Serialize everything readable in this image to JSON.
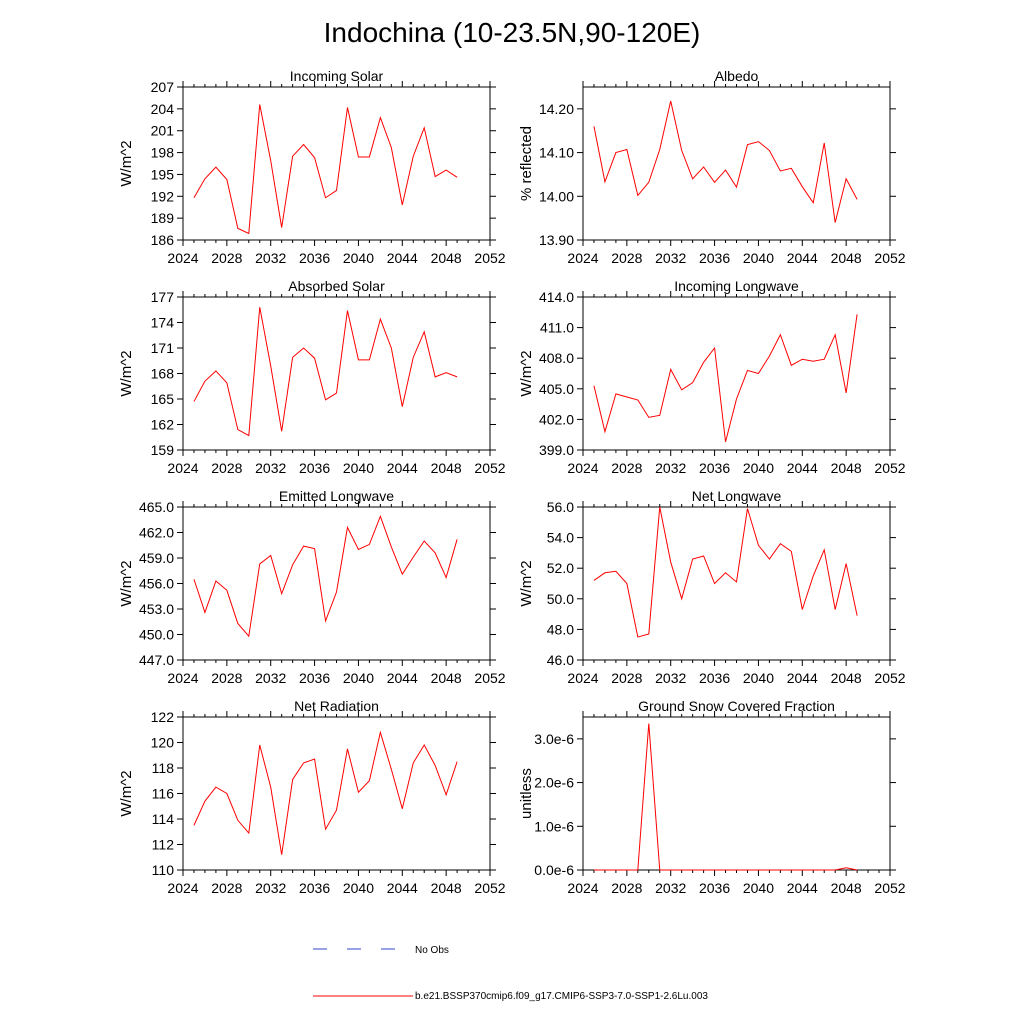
{
  "title": "Indochina (10-23.5N,90-120E)",
  "legend": {
    "entries": [
      {
        "label": "No Obs",
        "color": "#3344cc",
        "style": "dashed"
      },
      {
        "label": "b.e21.BSSP370cmip6.f09_g17.CMIP6-SSP3-7.0-SSP1-2.6Lu.003",
        "color": "#ff0000",
        "style": "solid"
      }
    ]
  },
  "colors": {
    "series": "#ff0000",
    "axis": "#000000"
  },
  "chart_data": [
    {
      "type": "line",
      "title": "Incoming Solar",
      "xlabel": "",
      "ylabel": "W/m^2",
      "xlim": [
        2024,
        2052
      ],
      "ylim": [
        186,
        207
      ],
      "xticks": [
        2024,
        2028,
        2032,
        2036,
        2040,
        2044,
        2048,
        2052
      ],
      "xtick_labels": [
        "2024",
        "2028",
        "2032",
        "2036",
        "2040",
        "2044",
        "2048",
        "2052"
      ],
      "yticks": [
        186,
        189,
        192,
        195,
        198,
        201,
        204,
        207
      ],
      "ytick_labels": [
        "186",
        "189",
        "192",
        "195",
        "198",
        "201",
        "204",
        "207"
      ],
      "x": [
        2025,
        2026,
        2027,
        2028,
        2029,
        2030,
        2031,
        2032,
        2033,
        2034,
        2035,
        2036,
        2037,
        2038,
        2039,
        2040,
        2041,
        2042,
        2043,
        2044,
        2045,
        2046,
        2047,
        2048,
        2049
      ],
      "series": [
        {
          "name": "b.e21.BSSP370cmip6.f09_g17.CMIP6-SSP3-7.0-SSP1-2.6Lu.003",
          "values": [
            191.8,
            194.4,
            196.0,
            194.3,
            187.6,
            186.9,
            204.6,
            196.9,
            187.7,
            197.5,
            199.1,
            197.3,
            191.8,
            192.8,
            204.2,
            197.4,
            197.4,
            202.8,
            198.7,
            190.8,
            197.5,
            201.4,
            194.7,
            195.6,
            194.6
          ]
        }
      ]
    },
    {
      "type": "line",
      "title": "Albedo",
      "xlabel": "",
      "ylabel": "% reflected",
      "xlim": [
        2024,
        2052
      ],
      "ylim": [
        13.9,
        14.25
      ],
      "xticks": [
        2024,
        2028,
        2032,
        2036,
        2040,
        2044,
        2048,
        2052
      ],
      "xtick_labels": [
        "2024",
        "2028",
        "2032",
        "2036",
        "2040",
        "2044",
        "2048",
        "2052"
      ],
      "yticks": [
        13.9,
        14.0,
        14.1,
        14.2
      ],
      "ytick_labels": [
        "13.90",
        "14.00",
        "14.10",
        "14.20"
      ],
      "x": [
        2025,
        2026,
        2027,
        2028,
        2029,
        2030,
        2031,
        2032,
        2033,
        2034,
        2035,
        2036,
        2037,
        2038,
        2039,
        2040,
        2041,
        2042,
        2043,
        2044,
        2045,
        2046,
        2047,
        2048,
        2049
      ],
      "series": [
        {
          "name": "b.e21.BSSP370cmip6.f09_g17.CMIP6-SSP3-7.0-SSP1-2.6Lu.003",
          "values": [
            14.16,
            14.033,
            14.1,
            14.107,
            14.002,
            14.032,
            14.107,
            14.218,
            14.105,
            14.04,
            14.067,
            14.032,
            14.06,
            14.021,
            14.118,
            14.125,
            14.105,
            14.058,
            14.064,
            14.022,
            13.985,
            14.122,
            13.94,
            14.04,
            13.993
          ]
        }
      ]
    },
    {
      "type": "line",
      "title": "Absorbed Solar",
      "xlabel": "",
      "ylabel": "W/m^2",
      "xlim": [
        2024,
        2052
      ],
      "ylim": [
        159,
        177
      ],
      "xticks": [
        2024,
        2028,
        2032,
        2036,
        2040,
        2044,
        2048,
        2052
      ],
      "xtick_labels": [
        "2024",
        "2028",
        "2032",
        "2036",
        "2040",
        "2044",
        "2048",
        "2052"
      ],
      "yticks": [
        159,
        162,
        165,
        168,
        171,
        174,
        177
      ],
      "ytick_labels": [
        "159",
        "162",
        "165",
        "168",
        "171",
        "174",
        "177"
      ],
      "x": [
        2025,
        2026,
        2027,
        2028,
        2029,
        2030,
        2031,
        2032,
        2033,
        2034,
        2035,
        2036,
        2037,
        2038,
        2039,
        2040,
        2041,
        2042,
        2043,
        2044,
        2045,
        2046,
        2047,
        2048,
        2049
      ],
      "series": [
        {
          "name": "b.e21.BSSP370cmip6.f09_g17.CMIP6-SSP3-7.0-SSP1-2.6Lu.003",
          "values": [
            164.7,
            167.1,
            168.3,
            166.9,
            161.4,
            160.7,
            175.8,
            168.9,
            161.2,
            169.9,
            171.0,
            169.8,
            164.9,
            165.7,
            175.4,
            169.6,
            169.6,
            174.4,
            171.0,
            164.1,
            169.9,
            172.9,
            167.6,
            168.1,
            167.6
          ]
        }
      ]
    },
    {
      "type": "line",
      "title": "Incoming Longwave",
      "xlabel": "",
      "ylabel": "W/m^2",
      "xlim": [
        2024,
        2052
      ],
      "ylim": [
        399,
        414
      ],
      "xticks": [
        2024,
        2028,
        2032,
        2036,
        2040,
        2044,
        2048,
        2052
      ],
      "xtick_labels": [
        "2024",
        "2028",
        "2032",
        "2036",
        "2040",
        "2044",
        "2048",
        "2052"
      ],
      "yticks": [
        399,
        402,
        405,
        408,
        411,
        414
      ],
      "ytick_labels": [
        "399.0",
        "402.0",
        "405.0",
        "408.0",
        "411.0",
        "414.0"
      ],
      "x": [
        2025,
        2026,
        2027,
        2028,
        2029,
        2030,
        2031,
        2032,
        2033,
        2034,
        2035,
        2036,
        2037,
        2038,
        2039,
        2040,
        2041,
        2042,
        2043,
        2044,
        2045,
        2046,
        2047,
        2048,
        2049
      ],
      "series": [
        {
          "name": "b.e21.BSSP370cmip6.f09_g17.CMIP6-SSP3-7.0-SSP1-2.6Lu.003",
          "values": [
            405.3,
            400.8,
            404.5,
            404.2,
            403.9,
            402.2,
            402.4,
            406.9,
            404.9,
            405.6,
            407.6,
            409.0,
            399.8,
            404.0,
            406.8,
            406.5,
            408.2,
            410.3,
            407.3,
            407.9,
            407.7,
            407.9,
            410.3,
            404.6,
            412.3
          ]
        }
      ]
    },
    {
      "type": "line",
      "title": "Emitted Longwave",
      "xlabel": "",
      "ylabel": "W/m^2",
      "xlim": [
        2024,
        2052
      ],
      "ylim": [
        447,
        465
      ],
      "xticks": [
        2024,
        2028,
        2032,
        2036,
        2040,
        2044,
        2048,
        2052
      ],
      "xtick_labels": [
        "2024",
        "2028",
        "2032",
        "2036",
        "2040",
        "2044",
        "2048",
        "2052"
      ],
      "yticks": [
        447,
        450,
        453,
        456,
        459,
        462,
        465
      ],
      "ytick_labels": [
        "447.0",
        "450.0",
        "453.0",
        "456.0",
        "459.0",
        "462.0",
        "465.0"
      ],
      "x": [
        2025,
        2026,
        2027,
        2028,
        2029,
        2030,
        2031,
        2032,
        2033,
        2034,
        2035,
        2036,
        2037,
        2038,
        2039,
        2040,
        2041,
        2042,
        2043,
        2044,
        2045,
        2046,
        2047,
        2048,
        2049
      ],
      "series": [
        {
          "name": "b.e21.BSSP370cmip6.f09_g17.CMIP6-SSP3-7.0-SSP1-2.6Lu.003",
          "values": [
            456.5,
            452.6,
            456.3,
            455.2,
            451.3,
            449.8,
            458.3,
            459.3,
            454.8,
            458.2,
            460.4,
            460.1,
            451.6,
            455.0,
            462.6,
            460.0,
            460.6,
            463.9,
            460.3,
            457.1,
            459.1,
            461.0,
            459.6,
            456.7,
            461.2
          ]
        }
      ]
    },
    {
      "type": "line",
      "title": "Net Longwave",
      "xlabel": "",
      "ylabel": "W/m^2",
      "xlim": [
        2024,
        2052
      ],
      "ylim": [
        46,
        56
      ],
      "xticks": [
        2024,
        2028,
        2032,
        2036,
        2040,
        2044,
        2048,
        2052
      ],
      "xtick_labels": [
        "2024",
        "2028",
        "2032",
        "2036",
        "2040",
        "2044",
        "2048",
        "2052"
      ],
      "yticks": [
        46,
        48,
        50,
        52,
        54,
        56
      ],
      "ytick_labels": [
        "46.0",
        "48.0",
        "50.0",
        "52.0",
        "54.0",
        "56.0"
      ],
      "x": [
        2025,
        2026,
        2027,
        2028,
        2029,
        2030,
        2031,
        2032,
        2033,
        2034,
        2035,
        2036,
        2037,
        2038,
        2039,
        2040,
        2041,
        2042,
        2043,
        2044,
        2045,
        2046,
        2047,
        2048,
        2049
      ],
      "series": [
        {
          "name": "b.e21.BSSP370cmip6.f09_g17.CMIP6-SSP3-7.0-SSP1-2.6Lu.003",
          "values": [
            51.2,
            51.7,
            51.8,
            51.0,
            47.5,
            47.7,
            56.0,
            52.4,
            50.0,
            52.6,
            52.8,
            51.0,
            51.7,
            51.1,
            55.9,
            53.5,
            52.6,
            53.6,
            53.1,
            49.3,
            51.5,
            53.2,
            49.3,
            52.3,
            48.9
          ]
        }
      ]
    },
    {
      "type": "line",
      "title": "Net Radiation",
      "xlabel": "",
      "ylabel": "W/m^2",
      "xlim": [
        2024,
        2052
      ],
      "ylim": [
        110,
        122
      ],
      "xticks": [
        2024,
        2028,
        2032,
        2036,
        2040,
        2044,
        2048,
        2052
      ],
      "xtick_labels": [
        "2024",
        "2028",
        "2032",
        "2036",
        "2040",
        "2044",
        "2048",
        "2052"
      ],
      "yticks": [
        110,
        112,
        114,
        116,
        118,
        120,
        122
      ],
      "ytick_labels": [
        "110",
        "112",
        "114",
        "116",
        "118",
        "120",
        "122"
      ],
      "x": [
        2025,
        2026,
        2027,
        2028,
        2029,
        2030,
        2031,
        2032,
        2033,
        2034,
        2035,
        2036,
        2037,
        2038,
        2039,
        2040,
        2041,
        2042,
        2043,
        2044,
        2045,
        2046,
        2047,
        2048,
        2049
      ],
      "series": [
        {
          "name": "b.e21.BSSP370cmip6.f09_g17.CMIP6-SSP3-7.0-SSP1-2.6Lu.003",
          "values": [
            113.5,
            115.4,
            116.5,
            116.0,
            113.9,
            112.9,
            119.8,
            116.5,
            111.2,
            117.1,
            118.4,
            118.7,
            113.2,
            114.7,
            119.5,
            116.1,
            117.0,
            120.8,
            117.9,
            114.8,
            118.4,
            119.8,
            118.2,
            115.9,
            118.5
          ]
        }
      ]
    },
    {
      "type": "line",
      "title": "Ground Snow Covered Fraction",
      "xlabel": "",
      "ylabel": "unitless",
      "xlim": [
        2024,
        2052
      ],
      "ylim": [
        0,
        3.5e-06
      ],
      "xticks": [
        2024,
        2028,
        2032,
        2036,
        2040,
        2044,
        2048,
        2052
      ],
      "xtick_labels": [
        "2024",
        "2028",
        "2032",
        "2036",
        "2040",
        "2044",
        "2048",
        "2052"
      ],
      "yticks": [
        0,
        1e-06,
        2e-06,
        3e-06
      ],
      "ytick_labels": [
        "0.0e-6",
        "1.0e-6",
        "2.0e-6",
        "3.0e-6"
      ],
      "x": [
        2025,
        2026,
        2027,
        2028,
        2029,
        2030,
        2031,
        2032,
        2033,
        2034,
        2035,
        2036,
        2037,
        2038,
        2039,
        2040,
        2041,
        2042,
        2043,
        2044,
        2045,
        2046,
        2047,
        2048,
        2049
      ],
      "series": [
        {
          "name": "b.e21.BSSP370cmip6.f09_g17.CMIP6-SSP3-7.0-SSP1-2.6Lu.003",
          "values": [
            0,
            0,
            0,
            0,
            0,
            3.35e-06,
            0,
            0,
            0,
            0,
            0,
            0,
            0,
            0,
            0,
            0,
            0,
            0,
            0,
            0,
            0,
            0,
            0,
            5e-08,
            0
          ]
        }
      ]
    }
  ]
}
